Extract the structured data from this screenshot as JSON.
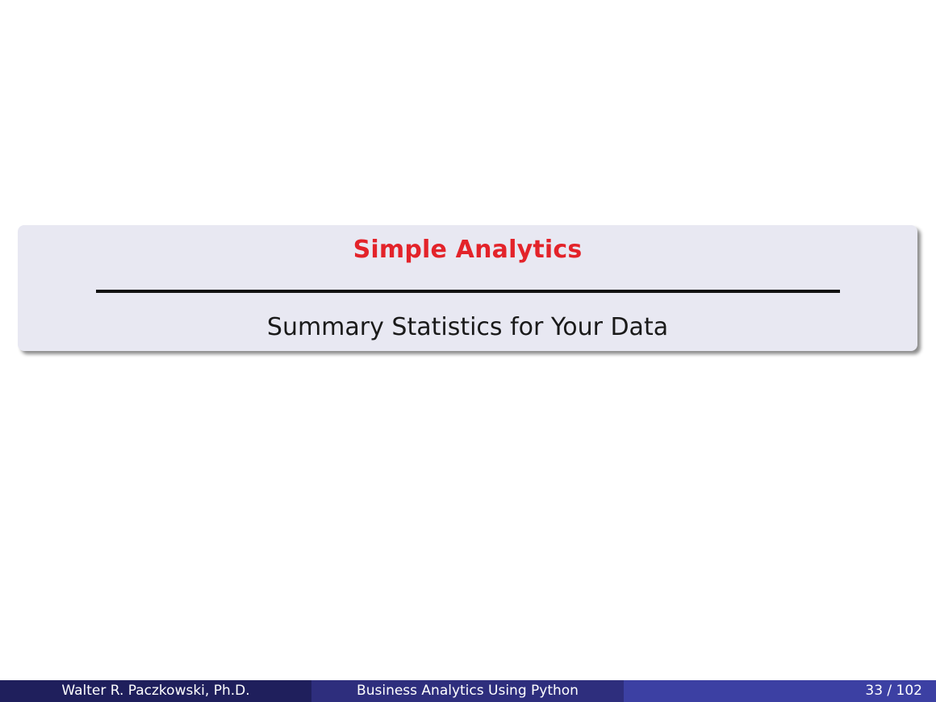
{
  "section": {
    "title": "Simple Analytics",
    "subtitle": "Summary Statistics for Your Data"
  },
  "footer": {
    "author": "Walter R. Paczkowski, Ph.D.",
    "title": "Business Analytics Using Python",
    "page": "33 / 102"
  },
  "colors": {
    "title_red": "#e3232a",
    "box_background": "#e8e8f2",
    "footer_dark": "#1f1f5c",
    "footer_mid": "#2e2e7d",
    "footer_light": "#3c40a3"
  }
}
